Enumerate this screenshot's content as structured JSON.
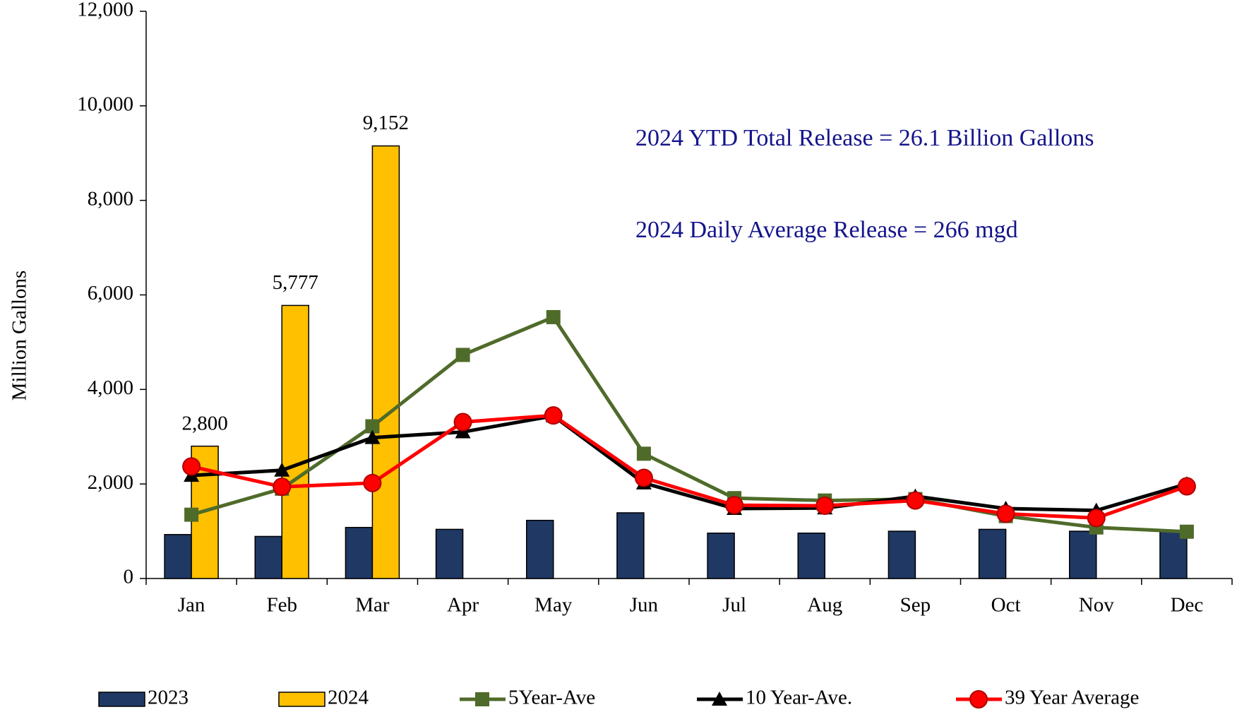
{
  "chart_data": {
    "type": "bar",
    "y_label": "Million Gallons",
    "annotations": [
      "2024 YTD Total Release = 26.1  Billion Gallons",
      "2024 Daily Average Release = 266 mgd"
    ],
    "categories": [
      "Jan",
      "Feb",
      "Mar",
      "Apr",
      "May",
      "Jun",
      "Jul",
      "Aug",
      "Sep",
      "Oct",
      "Nov",
      "Dec"
    ],
    "ylim": [
      0,
      12000
    ],
    "yticks": [
      0,
      {
        "value": 2000,
        "label": "2,000"
      },
      {
        "value": 4000,
        "label": "4,000"
      },
      {
        "value": 6000,
        "label": "6,000"
      },
      {
        "value": 8000,
        "label": "8,000"
      },
      {
        "value": 10000,
        "label": "10,000"
      },
      {
        "value": 12000,
        "label": "12,000"
      }
    ],
    "series": [
      {
        "name": "2023",
        "type": "bar",
        "color": "#1f3864",
        "values": [
          930,
          890,
          1080,
          1040,
          1230,
          1390,
          960,
          960,
          1000,
          1040,
          1000,
          1010
        ]
      },
      {
        "name": "2024",
        "type": "bar",
        "color": "#ffc000",
        "values": [
          2800,
          5777,
          9152,
          null,
          null,
          null,
          null,
          null,
          null,
          null,
          null,
          null
        ],
        "value_labels": [
          "2,800",
          "5,777",
          "9,152",
          null,
          null,
          null,
          null,
          null,
          null,
          null,
          null,
          null
        ]
      },
      {
        "name": "5Year-Ave",
        "type": "line",
        "marker": "square",
        "color": "#4f6b2a",
        "values": [
          1350,
          1900,
          3220,
          4730,
          5530,
          2640,
          1700,
          1650,
          1680,
          1320,
          1080,
          990
        ]
      },
      {
        "name": "10 Year-Ave.",
        "type": "line",
        "marker": "triangle",
        "color": "#000000",
        "values": [
          2180,
          2290,
          2980,
          3100,
          3440,
          2020,
          1480,
          1490,
          1740,
          1480,
          1440,
          2000
        ]
      },
      {
        "name": "39 Year Average",
        "type": "line",
        "marker": "circle",
        "color": "#ff0000",
        "values": [
          2370,
          1940,
          2020,
          3310,
          3450,
          2130,
          1550,
          1540,
          1650,
          1370,
          1280,
          1950
        ]
      }
    ]
  }
}
